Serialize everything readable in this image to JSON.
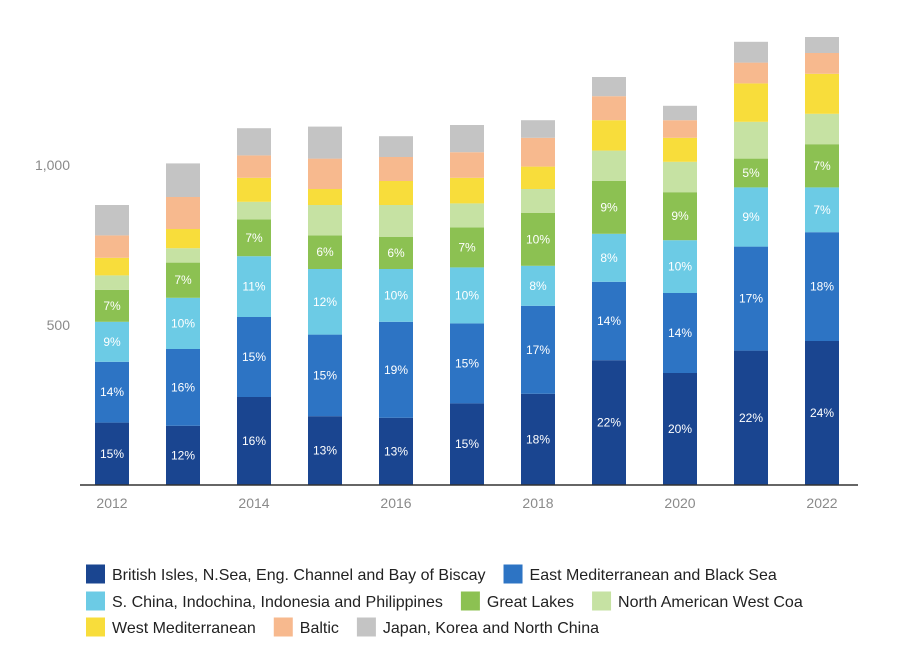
{
  "chart_data": {
    "type": "bar",
    "stacked": true,
    "title": "",
    "xlabel": "",
    "ylabel": "",
    "categories": [
      "2012",
      "2013",
      "2014",
      "2015",
      "2016",
      "2017",
      "2018",
      "2019",
      "2020",
      "2021",
      "2022"
    ],
    "x_tick_labels": [
      "2012",
      "",
      "2014",
      "",
      "2016",
      "",
      "2018",
      "",
      "2020",
      "",
      "2022"
    ],
    "y_ticks": [
      500,
      1000
    ],
    "y_tick_labels": [
      "500",
      "1,000"
    ],
    "ylim": [
      0,
      1400
    ],
    "grid": false,
    "legend_position": "bottom",
    "series": [
      {
        "name": "British Isles, N.Sea, Eng. Channel and Bay of Biscay",
        "color": "#1a4590",
        "values": [
          195,
          185,
          275,
          215,
          210,
          255,
          285,
          390,
          350,
          420,
          450
        ],
        "labels": [
          "15%",
          "12%",
          "16%",
          "13%",
          "13%",
          "15%",
          "18%",
          "22%",
          "20%",
          "22%",
          "24%"
        ]
      },
      {
        "name": "East Mediterranean and Black Sea",
        "color": "#2d74c4",
        "values": [
          190,
          240,
          250,
          255,
          300,
          250,
          275,
          245,
          250,
          325,
          340
        ],
        "labels": [
          "14%",
          "16%",
          "15%",
          "15%",
          "19%",
          "15%",
          "17%",
          "14%",
          "14%",
          "17%",
          "18%"
        ]
      },
      {
        "name": "S. China, Indochina, Indonesia and Philippines",
        "color": "#6ccbe5",
        "values": [
          125,
          160,
          190,
          205,
          165,
          175,
          125,
          150,
          165,
          185,
          140
        ],
        "labels": [
          "9%",
          "10%",
          "11%",
          "12%",
          "10%",
          "10%",
          "8%",
          "8%",
          "10%",
          "9%",
          "7%"
        ]
      },
      {
        "name": "Great Lakes",
        "color": "#8cc152",
        "values": [
          100,
          110,
          115,
          105,
          100,
          125,
          165,
          165,
          150,
          90,
          135
        ],
        "labels": [
          "7%",
          "7%",
          "7%",
          "6%",
          "6%",
          "7%",
          "10%",
          "9%",
          "9%",
          "5%",
          "7%"
        ]
      },
      {
        "name": "North American West Coast",
        "color": "#c6e2a3",
        "values": [
          45,
          45,
          55,
          95,
          100,
          75,
          75,
          95,
          95,
          115,
          95
        ],
        "labels": [
          "",
          "",
          "",
          "",
          "",
          "",
          "",
          "",
          "",
          "",
          ""
        ]
      },
      {
        "name": "West Mediterranean",
        "color": "#f8dd3b",
        "values": [
          55,
          60,
          75,
          50,
          75,
          80,
          70,
          95,
          75,
          120,
          125
        ],
        "labels": [
          "",
          "",
          "",
          "",
          "",
          "",
          "",
          "",
          "",
          "",
          ""
        ]
      },
      {
        "name": "Baltic",
        "color": "#f7b98e",
        "values": [
          70,
          100,
          70,
          95,
          75,
          80,
          90,
          75,
          55,
          65,
          65
        ],
        "labels": [
          "",
          "",
          "",
          "",
          "",
          "",
          "",
          "",
          "",
          "",
          ""
        ]
      },
      {
        "name": "Japan, Korea and North China",
        "color": "#c4c4c4",
        "values": [
          95,
          105,
          85,
          100,
          65,
          85,
          55,
          60,
          45,
          65,
          50
        ],
        "labels": [
          "",
          "",
          "",
          "",
          "",
          "",
          "",
          "",
          "",
          "",
          ""
        ]
      }
    ]
  },
  "legend": {
    "items": [
      {
        "label": "British Isles, N.Sea, Eng. Channel and Bay of Biscay",
        "color": "#1a4590"
      },
      {
        "label": "East Mediterranean and Black Sea",
        "color": "#2d74c4"
      },
      {
        "label": "S. China, Indochina, Indonesia and Philippines",
        "color": "#6ccbe5"
      },
      {
        "label": "Great Lakes",
        "color": "#8cc152"
      },
      {
        "label": "North American West Coa",
        "color": "#c6e2a3"
      },
      {
        "label": "West Mediterranean",
        "color": "#f8dd3b"
      },
      {
        "label": "Baltic",
        "color": "#f7b98e"
      },
      {
        "label": "Japan, Korea and North China",
        "color": "#c4c4c4"
      }
    ]
  }
}
